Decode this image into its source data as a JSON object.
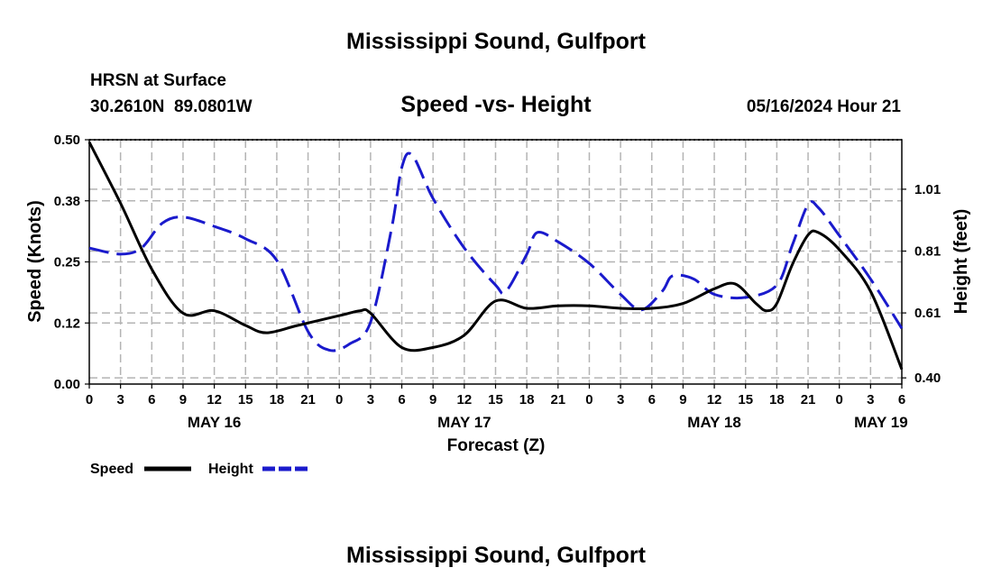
{
  "header": {
    "title": "Mississippi Sound, Gulfport",
    "location_line1": "HRSN at Surface",
    "location_line2": "30.2610N  89.0801W",
    "subtitle": "Speed -vs- Height",
    "datetime": "05/16/2024 Hour 21"
  },
  "footer": {
    "title": "Mississippi Sound, Gulfport"
  },
  "legend": {
    "speed_label": "Speed",
    "height_label": "Height"
  },
  "chart_data": {
    "type": "line",
    "title": "Speed -vs- Height",
    "xlabel": "Forecast (Z)",
    "ylabel_left": "Speed (Knots)",
    "ylabel_right": "Height (feet)",
    "x_range_hours": [
      0,
      78
    ],
    "x_ticks": [
      {
        "h": 0,
        "label": "0"
      },
      {
        "h": 3,
        "label": "3"
      },
      {
        "h": 6,
        "label": "6"
      },
      {
        "h": 9,
        "label": "9"
      },
      {
        "h": 12,
        "label": "12"
      },
      {
        "h": 15,
        "label": "15"
      },
      {
        "h": 18,
        "label": "18"
      },
      {
        "h": 21,
        "label": "21"
      },
      {
        "h": 24,
        "label": "0"
      },
      {
        "h": 27,
        "label": "3"
      },
      {
        "h": 30,
        "label": "6"
      },
      {
        "h": 33,
        "label": "9"
      },
      {
        "h": 36,
        "label": "12"
      },
      {
        "h": 39,
        "label": "15"
      },
      {
        "h": 42,
        "label": "18"
      },
      {
        "h": 45,
        "label": "21"
      },
      {
        "h": 48,
        "label": "0"
      },
      {
        "h": 51,
        "label": "3"
      },
      {
        "h": 54,
        "label": "6"
      },
      {
        "h": 57,
        "label": "9"
      },
      {
        "h": 60,
        "label": "12"
      },
      {
        "h": 63,
        "label": "15"
      },
      {
        "h": 66,
        "label": "18"
      },
      {
        "h": 69,
        "label": "21"
      },
      {
        "h": 72,
        "label": "0"
      },
      {
        "h": 75,
        "label": "3"
      },
      {
        "h": 78,
        "label": "6"
      }
    ],
    "date_labels": [
      {
        "h": 12,
        "label": "MAY 16"
      },
      {
        "h": 36,
        "label": "MAY 17"
      },
      {
        "h": 60,
        "label": "MAY 18"
      },
      {
        "h": 76,
        "label": "MAY 19"
      }
    ],
    "y_left": {
      "range": [
        0,
        0.5
      ],
      "ticks": [
        {
          "v": 0.0,
          "label": "0.00"
        },
        {
          "v": 0.125,
          "label": "0.12"
        },
        {
          "v": 0.25,
          "label": "0.25"
        },
        {
          "v": 0.375,
          "label": "0.38"
        },
        {
          "v": 0.5,
          "label": "0.50"
        }
      ]
    },
    "y_right": {
      "range": [
        0.38,
        1.17
      ],
      "ticks": [
        {
          "v": 0.4,
          "label": "0.40"
        },
        {
          "v": 0.61,
          "label": "0.61"
        },
        {
          "v": 0.81,
          "label": "0.81"
        },
        {
          "v": 1.01,
          "label": "1.01"
        }
      ]
    },
    "grid": true,
    "series": [
      {
        "name": "Speed",
        "axis": "left",
        "color": "#000000",
        "dash": "solid",
        "points": [
          [
            0,
            0.495
          ],
          [
            3,
            0.37
          ],
          [
            6,
            0.235
          ],
          [
            9,
            0.145
          ],
          [
            12,
            0.15
          ],
          [
            15,
            0.12
          ],
          [
            17,
            0.105
          ],
          [
            20,
            0.12
          ],
          [
            24,
            0.14
          ],
          [
            26,
            0.15
          ],
          [
            27,
            0.145
          ],
          [
            30,
            0.075
          ],
          [
            33,
            0.075
          ],
          [
            36,
            0.1
          ],
          [
            39,
            0.17
          ],
          [
            42,
            0.155
          ],
          [
            45,
            0.16
          ],
          [
            48,
            0.16
          ],
          [
            51,
            0.155
          ],
          [
            54,
            0.155
          ],
          [
            57,
            0.165
          ],
          [
            60,
            0.195
          ],
          [
            62,
            0.205
          ],
          [
            64,
            0.165
          ],
          [
            65,
            0.15
          ],
          [
            66,
            0.165
          ],
          [
            67.5,
            0.245
          ],
          [
            69,
            0.305
          ],
          [
            70,
            0.31
          ],
          [
            72,
            0.275
          ],
          [
            75,
            0.19
          ],
          [
            78,
            0.03
          ]
        ]
      },
      {
        "name": "Height",
        "axis": "right",
        "color": "#1a1acc",
        "dash": "dashed",
        "points": [
          [
            0,
            0.82
          ],
          [
            3,
            0.8
          ],
          [
            5,
            0.82
          ],
          [
            7,
            0.9
          ],
          [
            9,
            0.92
          ],
          [
            12,
            0.89
          ],
          [
            15,
            0.85
          ],
          [
            18,
            0.78
          ],
          [
            21,
            0.55
          ],
          [
            23,
            0.49
          ],
          [
            25,
            0.51
          ],
          [
            27,
            0.58
          ],
          [
            29,
            0.88
          ],
          [
            30,
            1.08
          ],
          [
            31,
            1.12
          ],
          [
            33,
            0.98
          ],
          [
            36,
            0.82
          ],
          [
            39,
            0.7
          ],
          [
            40,
            0.68
          ],
          [
            42,
            0.8
          ],
          [
            43,
            0.87
          ],
          [
            45,
            0.84
          ],
          [
            48,
            0.77
          ],
          [
            51,
            0.67
          ],
          [
            53,
            0.62
          ],
          [
            55,
            0.68
          ],
          [
            56,
            0.73
          ],
          [
            58,
            0.72
          ],
          [
            60,
            0.67
          ],
          [
            63,
            0.66
          ],
          [
            66,
            0.7
          ],
          [
            67.5,
            0.83
          ],
          [
            69,
            0.96
          ],
          [
            70,
            0.95
          ],
          [
            72,
            0.86
          ],
          [
            75,
            0.72
          ],
          [
            78,
            0.56
          ]
        ]
      }
    ]
  }
}
